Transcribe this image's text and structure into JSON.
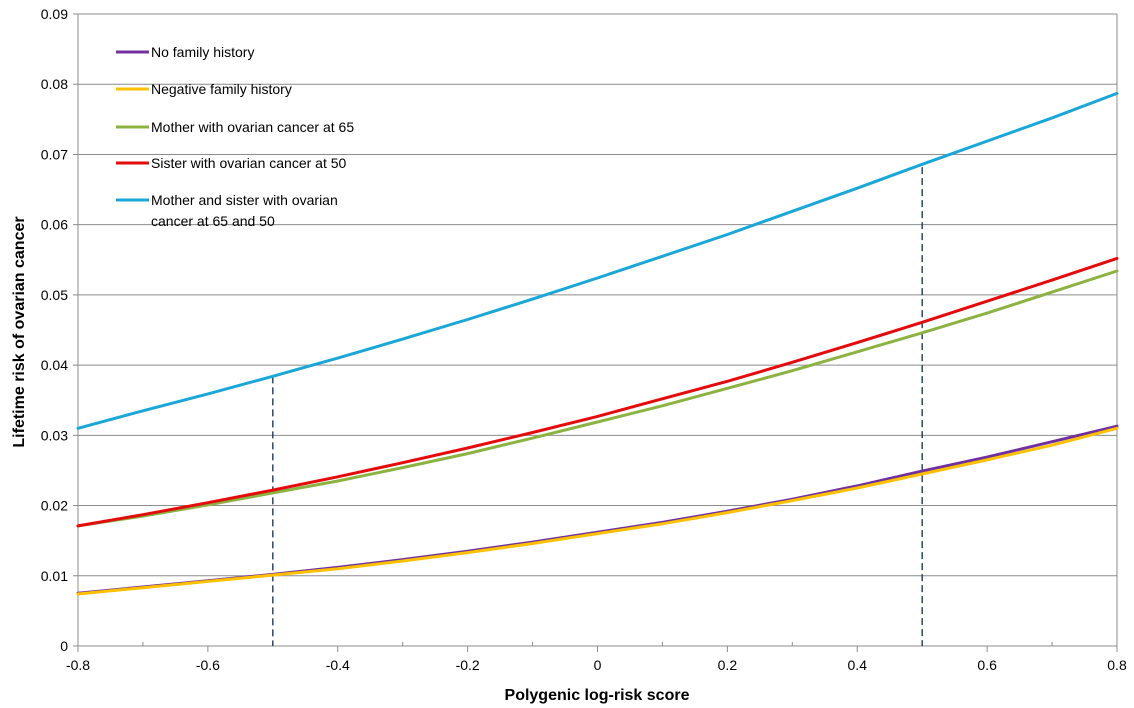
{
  "chart_data": {
    "type": "line",
    "title": "",
    "xlabel": "Polygenic log-risk score",
    "ylabel": "Lifetime risk of ovarian cancer",
    "xlim": [
      -0.8,
      0.8
    ],
    "ylim": [
      0,
      0.09
    ],
    "x_ticks": [
      -0.8,
      -0.6,
      -0.4,
      -0.2,
      0,
      0.2,
      0.4,
      0.6,
      0.8
    ],
    "x_tick_labels": [
      "-0.8",
      "-0.6",
      "-0.4",
      "-0.2",
      "0",
      "0.2",
      "0.4",
      "0.6",
      "0.8"
    ],
    "y_ticks": [
      0,
      0.01,
      0.02,
      0.03,
      0.04,
      0.05,
      0.06,
      0.07,
      0.08,
      0.09
    ],
    "y_tick_labels": [
      "0",
      "0.01",
      "0.02",
      "0.03",
      "0.04",
      "0.05",
      "0.06",
      "0.07",
      "0.08",
      "0.09"
    ],
    "grid": "horizontal",
    "legend_position": "top-left",
    "x": [
      -0.8,
      -0.7,
      -0.6,
      -0.5,
      -0.4,
      -0.3,
      -0.2,
      -0.1,
      0,
      0.1,
      0.2,
      0.3,
      0.4,
      0.5,
      0.6,
      0.7,
      0.8
    ],
    "series": [
      {
        "name": "No family history",
        "color": "#7030a0",
        "values": [
          0.0075,
          0.0084,
          0.0093,
          0.0102,
          0.0112,
          0.0123,
          0.0135,
          0.0148,
          0.0162,
          0.0176,
          0.0192,
          0.0209,
          0.0228,
          0.0249,
          0.0269,
          0.0291,
          0.0313
        ]
      },
      {
        "name": "Negative family history",
        "color": "#ffc000",
        "values": [
          0.0074,
          0.0083,
          0.0092,
          0.0101,
          0.011,
          0.0121,
          0.0133,
          0.0146,
          0.016,
          0.0174,
          0.019,
          0.0207,
          0.0225,
          0.0245,
          0.0265,
          0.0286,
          0.031
        ]
      },
      {
        "name": "Mother with ovarian cancer at 65",
        "color": "#8cb341",
        "values": [
          0.0171,
          0.0185,
          0.0201,
          0.0218,
          0.0235,
          0.0254,
          0.0274,
          0.0296,
          0.0319,
          0.0342,
          0.0367,
          0.0392,
          0.0419,
          0.0446,
          0.0474,
          0.0504,
          0.0534
        ]
      },
      {
        "name": "Sister with ovarian cancer at 50",
        "color": "#e30b0b",
        "values": [
          0.0171,
          0.0187,
          0.0204,
          0.0222,
          0.0241,
          0.0261,
          0.0282,
          0.0304,
          0.0327,
          0.0352,
          0.0377,
          0.0404,
          0.0432,
          0.0461,
          0.0491,
          0.0521,
          0.0552
        ]
      },
      {
        "name": "Mother and sister with ovarian cancer at 65 and 50",
        "color": "#1aa7d8",
        "values": [
          0.031,
          0.0335,
          0.0359,
          0.0384,
          0.041,
          0.0437,
          0.0465,
          0.0494,
          0.0524,
          0.0555,
          0.0586,
          0.0619,
          0.0652,
          0.0686,
          0.0719,
          0.0752,
          0.0787
        ]
      }
    ],
    "reference_lines": [
      {
        "x": -0.5,
        "y_top": 0.0384,
        "color": "#1f3864",
        "style": "dashed"
      },
      {
        "x": 0.5,
        "y_top": 0.0682,
        "color": "#1f3864",
        "style": "dashed"
      }
    ]
  }
}
